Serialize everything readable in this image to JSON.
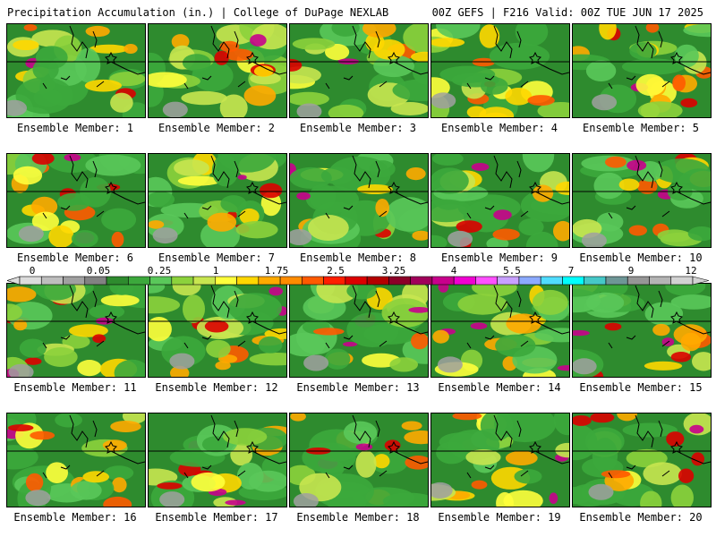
{
  "header": {
    "left_title": "Precipitation Accumulation (in.) | College of DuPage NEXLAB",
    "right_title": "00Z GEFS | F216 Valid: 00Z TUE JUN 17 2025"
  },
  "member_label_prefix": "Ensemble Member: ",
  "members": [
    {
      "label": "Ensemble Member: 1"
    },
    {
      "label": "Ensemble Member: 2"
    },
    {
      "label": "Ensemble Member: 3"
    },
    {
      "label": "Ensemble Member: 4"
    },
    {
      "label": "Ensemble Member: 5"
    },
    {
      "label": "Ensemble Member: 6"
    },
    {
      "label": "Ensemble Member: 7"
    },
    {
      "label": "Ensemble Member: 8"
    },
    {
      "label": "Ensemble Member: 9"
    },
    {
      "label": "Ensemble Member: 10"
    },
    {
      "label": "Ensemble Member: 11"
    },
    {
      "label": "Ensemble Member: 12"
    },
    {
      "label": "Ensemble Member: 13"
    },
    {
      "label": "Ensemble Member: 14"
    },
    {
      "label": "Ensemble Member: 15"
    },
    {
      "label": "Ensemble Member: 16"
    },
    {
      "label": "Ensemble Member: 17"
    },
    {
      "label": "Ensemble Member: 18"
    },
    {
      "label": "Ensemble Member: 19"
    },
    {
      "label": "Ensemble Member: 20"
    }
  ],
  "colorbar": {
    "tick_labels": [
      "0",
      "0.05",
      "0.25",
      "1",
      "1.75",
      "2.5",
      "3.25",
      "4",
      "5.5",
      "7",
      "9",
      "12"
    ],
    "colors": [
      "#dcdcdc",
      "#bebebe",
      "#a0a0a0",
      "#828282",
      "#2e8b2e",
      "#3ca83c",
      "#5ac85a",
      "#8cd23c",
      "#c8e650",
      "#ffff3c",
      "#ffd700",
      "#ffaa00",
      "#ff8c00",
      "#ff5a00",
      "#ff1e00",
      "#dc0000",
      "#b40000",
      "#8c0028",
      "#a0005a",
      "#c8008c",
      "#f000d2",
      "#ff50ff",
      "#c8a0ff",
      "#8caaff",
      "#50dcff",
      "#00ffff",
      "#46c8c8",
      "#6e9696",
      "#969696",
      "#b4b4b4",
      "#d2d2d2"
    ]
  }
}
